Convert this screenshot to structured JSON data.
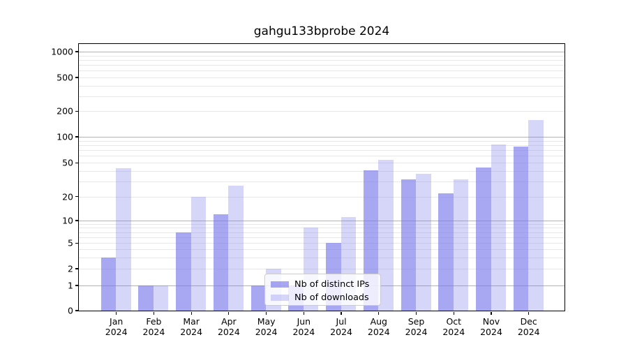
{
  "title": "gahgu133bprobe 2024",
  "legend": {
    "items": [
      {
        "label": "Nb of distinct IPs",
        "series": "ips"
      },
      {
        "label": "Nb of downloads",
        "series": "downloads"
      }
    ]
  },
  "colors": {
    "bar_base": "#7878eb",
    "dark_bar_rendered": "#a7a7f2",
    "light_bar_rendered": "#d7d7f9",
    "dark_alpha": 0.65,
    "light_alpha": 0.3,
    "grid_major": "#b3b3b3",
    "grid_minor": "#e8e8e8",
    "axis": "#000000"
  },
  "y_axis": {
    "tick_labels": [
      "1000",
      "500",
      "200",
      "100",
      "50",
      "20",
      "10",
      "5",
      "2",
      "1",
      "0"
    ],
    "tick_values": [
      1000,
      500,
      200,
      100,
      50,
      20,
      10,
      5,
      2,
      1,
      0
    ]
  },
  "x_axis": {
    "months": [
      "Jan",
      "Feb",
      "Mar",
      "Apr",
      "May",
      "Jun",
      "Jul",
      "Aug",
      "Sep",
      "Oct",
      "Nov",
      "Dec"
    ],
    "year": "2024"
  },
  "chart_data": {
    "type": "bar",
    "title": "gahgu133bprobe 2024",
    "categories": [
      "Jan 2024",
      "Feb 2024",
      "Mar 2024",
      "Apr 2024",
      "May 2024",
      "Jun 2024",
      "Jul 2024",
      "Aug 2024",
      "Sep 2024",
      "Oct 2024",
      "Nov 2024",
      "Dec 2024"
    ],
    "series": [
      {
        "name": "Nb of distinct IPs",
        "values": [
          3,
          1,
          7,
          12,
          1,
          1,
          5,
          41,
          32,
          22,
          44,
          77
        ]
      },
      {
        "name": "Nb of downloads",
        "values": [
          43,
          1,
          20,
          27,
          2,
          8,
          11,
          54,
          37,
          32,
          81,
          157
        ]
      }
    ],
    "yscale": "symlog",
    "ylim": [
      0,
      1400
    ],
    "ytick_values": [
      0,
      1,
      2,
      5,
      10,
      20,
      50,
      100,
      200,
      500,
      1000
    ],
    "grid": "horizontal",
    "legend_position": "lower center"
  }
}
